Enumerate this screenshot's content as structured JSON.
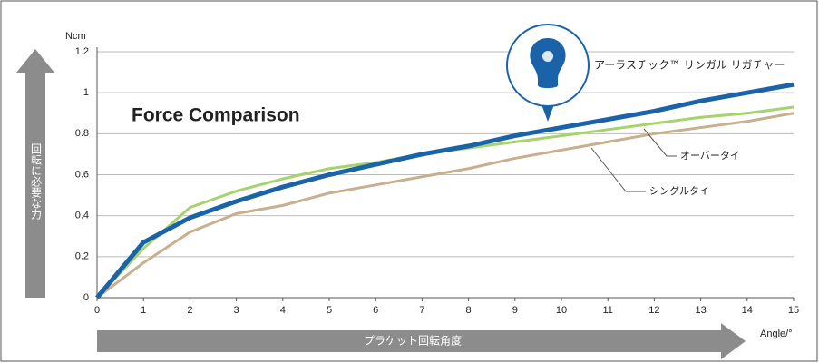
{
  "chart_data": {
    "type": "line",
    "title": "Force Comparison",
    "y_unit": "Ncm",
    "x_unit": "Angle/°",
    "y_axis_label": "回転に必要な力",
    "x_axis_label": "プラケット回転角度",
    "x": [
      0,
      1,
      2,
      3,
      4,
      5,
      6,
      7,
      8,
      9,
      10,
      11,
      12,
      13,
      14,
      15
    ],
    "xlim": [
      0,
      15
    ],
    "xticks": [
      0,
      1,
      2,
      3,
      4,
      5,
      6,
      7,
      8,
      9,
      10,
      11,
      12,
      13,
      14,
      15
    ],
    "ylim": [
      0,
      1.2
    ],
    "yticks": [
      0,
      0.2,
      0.4,
      0.6,
      0.8,
      1,
      1.2
    ],
    "grid": true,
    "series": [
      {
        "name": "シングルタイ",
        "color": "#c8b08e",
        "values": [
          0,
          0.17,
          0.32,
          0.41,
          0.45,
          0.51,
          0.55,
          0.59,
          0.63,
          0.68,
          0.72,
          0.76,
          0.8,
          0.83,
          0.86,
          0.9
        ]
      },
      {
        "name": "オーバータイ",
        "color": "#a6d36b",
        "values": [
          0,
          0.24,
          0.44,
          0.52,
          0.58,
          0.63,
          0.66,
          0.7,
          0.73,
          0.76,
          0.79,
          0.82,
          0.85,
          0.88,
          0.9,
          0.93
        ]
      },
      {
        "name": "アーラスチック™ リンガル リガチャー",
        "color": "#1a63a8",
        "values": [
          0,
          0.27,
          0.39,
          0.47,
          0.54,
          0.6,
          0.65,
          0.7,
          0.74,
          0.79,
          0.83,
          0.87,
          0.91,
          0.96,
          1.0,
          1.04
        ]
      }
    ]
  }
}
